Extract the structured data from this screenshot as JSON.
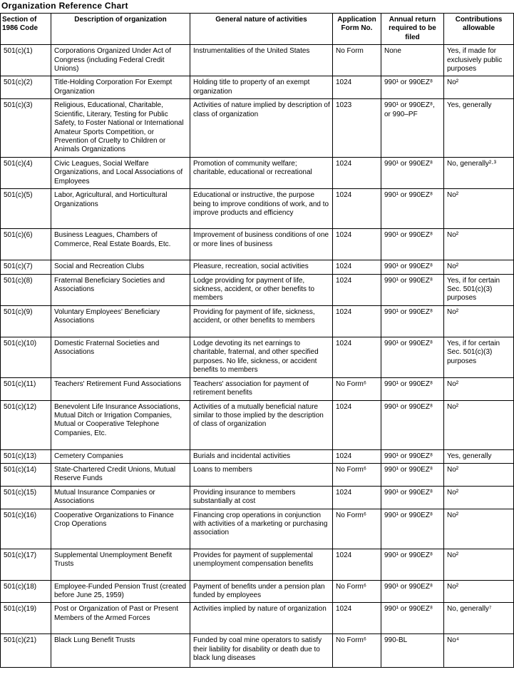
{
  "title": "Organization Reference Chart",
  "table": {
    "header": [
      "Section of 1986 Code",
      "Description of organization",
      "General nature of activities",
      "Application Form No.",
      "Annual return required to be filed",
      "Contributions allowable"
    ],
    "rows": [
      [
        "501(c)(1)",
        "Corporations Organized Under Act of Congress (including Federal Credit Unions)",
        "Instrumentalities of the United States",
        "No Form",
        "None",
        "Yes, if made for exclusively public purposes"
      ],
      [
        "501(c)(2)",
        "Title-Holding Corporation For Exempt Organization",
        "Holding title to property of an exempt organization",
        "1024",
        "990¹ or 990EZ⁸",
        "No²"
      ],
      [
        "501(c)(3)",
        "Religious, Educational, Charitable, Scientific, Literary, Testing for Public Safety, to Foster National or International Amateur Sports Competition, or Prevention of Cruelty to Children or Animals Organizations",
        "Activities of nature implied by description of class of organization",
        "1023",
        "990¹ or 990EZ⁸, or 990–PF",
        "Yes, generally"
      ],
      [
        "501(c)(4)",
        "Civic Leagues, Social Welfare Organizations, and Local Associations of Employees",
        "Promotion of community welfare; charitable, educational or recreational",
        "1024",
        "990¹ or 990EZ⁸",
        "No, generally²·³"
      ],
      [
        "501(c)(5)",
        "Labor, Agricultural, and Horticultural Organizations",
        "Educational or instructive, the purpose being to improve conditions of work, and to improve products and efficiency",
        "1024",
        "990¹ or 990EZ⁸",
        "No²"
      ],
      [
        "501(c)(6)",
        "Business Leagues, Chambers of Commerce, Real Estate Boards, Etc.",
        "Improvement of business conditions of one or more lines of business",
        "1024",
        "990¹ or 990EZ⁸",
        "No²"
      ],
      [
        "501(c)(7)",
        "Social and Recreation Clubs",
        "Pleasure, recreation, social activities",
        "1024",
        "990¹ or 990EZ⁸",
        "No²"
      ],
      [
        "501(c)(8)",
        "Fraternal Beneficiary Societies and Associations",
        "Lodge providing for payment of life, sickness, accident, or other benefits to members",
        "1024",
        "990¹ or 990EZ⁸",
        "Yes, if for certain Sec. 501(c)(3) purposes"
      ],
      [
        "501(c)(9)",
        "Voluntary Employees' Beneficiary Associations",
        "Providing for payment of life, sickness, accident, or other benefits to members",
        "1024",
        "990¹ or 990EZ⁸",
        "No²"
      ],
      [
        "501(c)(10)",
        "Domestic Fraternal Societies and Associations",
        "Lodge devoting its net earnings to charitable, fraternal, and other specified purposes. No life, sickness, or accident benefits to members",
        "1024",
        "990¹ or 990EZ⁸",
        "Yes, if for certain Sec. 501(c)(3) purposes"
      ],
      [
        "501(c)(11)",
        "Teachers' Retirement Fund Associations",
        "Teachers' association for payment of retirement benefits",
        "No Form⁶",
        "990¹ or 990EZ⁸",
        "No²"
      ],
      [
        "501(c)(12)",
        "Benevolent Life Insurance Associations, Mutual Ditch or Irrigation Companies, Mutual or Cooperative Telephone Companies, Etc.",
        "Activities of a mutually beneficial nature similar to those implied by the description of class of organization",
        "1024",
        "990¹ or 990EZ⁸",
        "No²"
      ],
      [
        "501(c)(13)",
        "Cemetery Companies",
        "Burials and incidental activities",
        "1024",
        "990¹ or 990EZ⁸",
        "Yes, generally"
      ],
      [
        "501(c)(14)",
        "State-Chartered Credit Unions, Mutual Reserve Funds",
        "Loans to members",
        "No Form⁶",
        "990¹ or 990EZ⁸",
        "No²"
      ],
      [
        "501(c)(15)",
        "Mutual Insurance Companies or Associations",
        "Providing insurance to members substantially at cost",
        "1024",
        "990¹ or 990EZ⁸",
        "No²"
      ],
      [
        "501(c)(16)",
        "Cooperative Organizations to Finance Crop Operations",
        "Financing crop operations in conjunction with activities of a marketing or purchasing association",
        "No Form⁶",
        "990¹ or 990EZ⁸",
        "No²"
      ],
      [
        "501(c)(17)",
        "Supplemental Unemployment Benefit Trusts",
        "Provides for payment of supplemental unemployment compensation benefits",
        "1024",
        "990¹ or 990EZ⁸",
        "No²"
      ],
      [
        "501(c)(18)",
        "Employee-Funded Pension Trust (created before June 25, 1959)",
        "Payment of benefits under a pension plan funded by employees",
        "No Form⁶",
        "990¹ or 990EZ⁸",
        "No²"
      ],
      [
        "501(c)(19)",
        "Post or Organization of Past or Present Members of the Armed Forces",
        "Activities implied by nature of organization",
        "1024",
        "990¹ or 990EZ⁸",
        "No, generally⁷"
      ],
      [
        "501(c)(21)",
        "Black Lung Benefit Trusts",
        "Funded by coal mine operators to satisfy their liability for disability or death due to black lung diseases",
        "No Form⁶",
        "990-BL",
        "No⁴"
      ]
    ]
  }
}
